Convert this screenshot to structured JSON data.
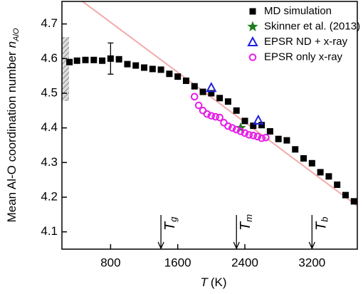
{
  "chart_data": {
    "type": "scatter",
    "x_label": {
      "symbol": "T",
      "unit": "(K)"
    },
    "y_label": {
      "text": "Mean Al-O coordination number",
      "symbol": "n",
      "sub": "AlO"
    },
    "xlim": [
      220,
      3740
    ],
    "ylim": [
      4.05,
      4.765
    ],
    "xticks": [
      800,
      1600,
      2400,
      3200
    ],
    "yticks": [
      4.1,
      4.2,
      4.3,
      4.4,
      4.5,
      4.6,
      4.7
    ],
    "legend": "top-right",
    "series": [
      {
        "name": "MD simulation",
        "marker": "square",
        "color": "#000000",
        "x": [
          310,
          400,
          500,
          600,
          700,
          800,
          900,
          1000,
          1100,
          1200,
          1300,
          1400,
          1500,
          1600,
          1700,
          1800,
          1900,
          2000,
          2100,
          2200,
          2300,
          2400,
          2500,
          2600,
          2700,
          2800,
          2900,
          3000,
          3100,
          3200,
          3300,
          3400,
          3500,
          3600,
          3700
        ],
        "values": [
          4.59,
          4.594,
          4.596,
          4.596,
          4.594,
          4.6,
          4.598,
          4.584,
          4.58,
          4.574,
          4.57,
          4.568,
          4.556,
          4.548,
          4.536,
          4.52,
          4.504,
          4.5,
          4.486,
          4.476,
          4.45,
          4.42,
          4.406,
          4.408,
          4.39,
          4.368,
          4.364,
          4.338,
          4.312,
          4.298,
          4.272,
          4.26,
          4.236,
          4.206,
          4.188
        ]
      },
      {
        "name": "Skinner et al. (2013)",
        "marker": "star",
        "color": "#1e7d1e",
        "x": [
          2350
        ],
        "values": [
          4.4
        ]
      },
      {
        "name": "EPSR ND + x-ray",
        "marker": "triangle",
        "color": "#1f1fe0",
        "x": [
          2000,
          2560
        ],
        "values": [
          4.516,
          4.422
        ]
      },
      {
        "name": "EPSR only x-ray",
        "marker": "circle",
        "color": "#e61ee6",
        "x": [
          1800,
          1850,
          1900,
          1950,
          2000,
          2050,
          2100,
          2150,
          2200,
          2250,
          2300,
          2350,
          2400,
          2450,
          2500,
          2550,
          2600,
          2650
        ],
        "values": [
          4.49,
          4.465,
          4.45,
          4.44,
          4.435,
          4.432,
          4.43,
          4.415,
          4.405,
          4.4,
          4.395,
          4.39,
          4.385,
          4.38,
          4.378,
          4.375,
          4.37,
          4.372
        ]
      }
    ],
    "error_bar": {
      "x": 800,
      "y": 4.6,
      "error": 0.045
    },
    "fit_line": {
      "x": [
        460,
        3733
      ],
      "values": [
        4.766,
        4.176
      ],
      "color": "#f2aaaa"
    },
    "annotations": [
      {
        "symbol": "T",
        "sub": "g",
        "x": 1400
      },
      {
        "symbol": "T",
        "sub": "m",
        "x": 2300
      },
      {
        "symbol": "T",
        "sub": "b",
        "x": 3200
      }
    ]
  }
}
